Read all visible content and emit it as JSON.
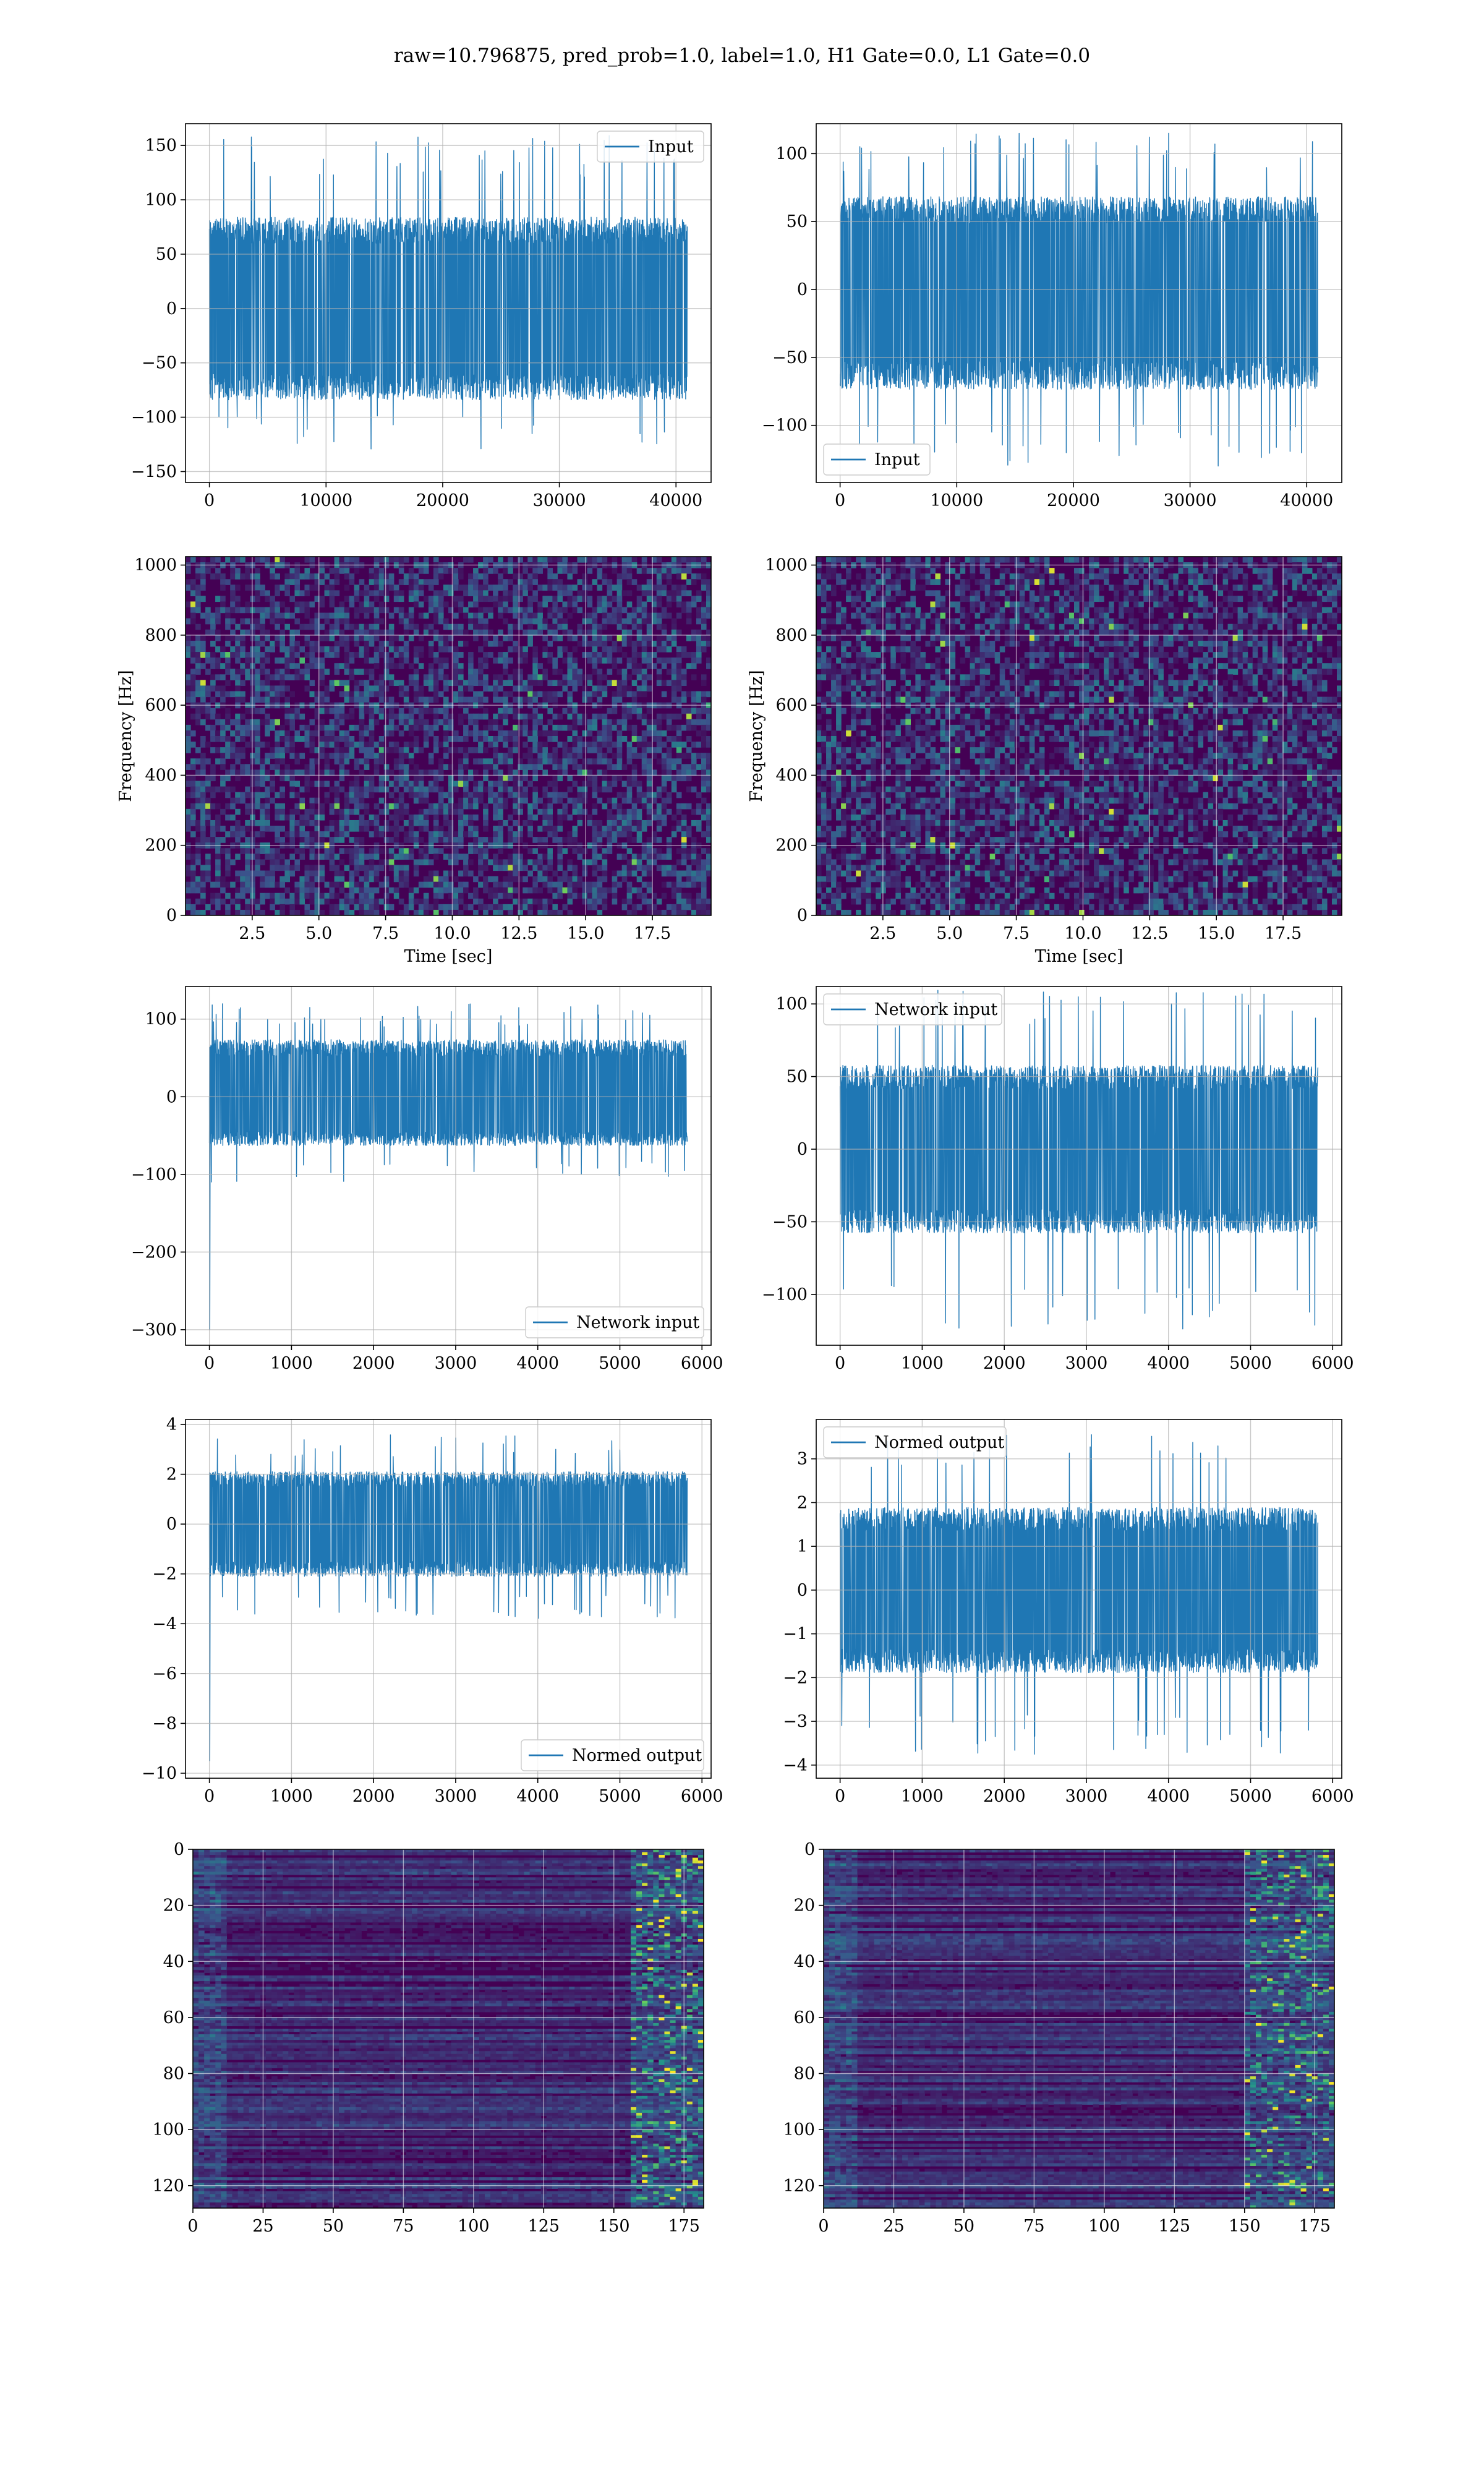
{
  "figure": {
    "title": "raw=10.796875, pred_prob=1.0, label=1.0, H1 Gate=0.0, L1 Gate=0.0",
    "colors": {
      "line": "#1f77b4",
      "grid": "#b0b0b0",
      "spine": "#000000",
      "viridis_low": "#440154"
    }
  },
  "chart_data": [
    {
      "id": "h1-input",
      "type": "line",
      "title": "",
      "xlabel": "",
      "ylabel": "",
      "xlim": [
        -2048,
        43008
      ],
      "ylim": [
        -160,
        170
      ],
      "xticks": [
        0,
        10000,
        20000,
        30000,
        40000
      ],
      "yticks": [
        -150,
        -100,
        -50,
        0,
        50,
        100,
        150
      ],
      "grid": true,
      "legend_loc": "upper right",
      "series": [
        {
          "name": "Input",
          "n_points": 40960,
          "x_range": [
            0,
            40960
          ],
          "envelope": [
            -130,
            160
          ],
          "core_band": [
            -80,
            80
          ]
        }
      ]
    },
    {
      "id": "l1-input",
      "type": "line",
      "title": "",
      "xlabel": "",
      "ylabel": "",
      "xlim": [
        -2048,
        43008
      ],
      "ylim": [
        -142,
        122
      ],
      "xticks": [
        0,
        10000,
        20000,
        30000,
        40000
      ],
      "yticks": [
        -100,
        -50,
        0,
        50,
        100
      ],
      "grid": true,
      "legend_loc": "lower left",
      "series": [
        {
          "name": "Input",
          "n_points": 40960,
          "x_range": [
            0,
            40960
          ],
          "envelope": [
            -130,
            115
          ],
          "core_band": [
            -70,
            65
          ]
        }
      ]
    },
    {
      "id": "h1-spectrogram",
      "type": "heatmap",
      "title": "",
      "xlabel": "Time [sec]",
      "ylabel": "Frequency [Hz]",
      "xlim": [
        0,
        19.7
      ],
      "ylim": [
        0,
        1024
      ],
      "xticks": [
        2.5,
        5.0,
        7.5,
        10.0,
        12.5,
        15.0,
        17.5
      ],
      "yticks": [
        0,
        200,
        400,
        600,
        800,
        1000
      ],
      "colormap": "viridis",
      "grid": true
    },
    {
      "id": "l1-spectrogram",
      "type": "heatmap",
      "title": "",
      "xlabel": "Time [sec]",
      "ylabel": "Frequency [Hz]",
      "xlim": [
        0,
        19.7
      ],
      "ylim": [
        0,
        1024
      ],
      "xticks": [
        2.5,
        5.0,
        7.5,
        10.0,
        12.5,
        15.0,
        17.5
      ],
      "yticks": [
        0,
        200,
        400,
        600,
        800,
        1000
      ],
      "colormap": "viridis",
      "grid": true
    },
    {
      "id": "h1-network-input",
      "type": "line",
      "title": "",
      "xlabel": "",
      "ylabel": "",
      "xlim": [
        -291,
        6111
      ],
      "ylim": [
        -320,
        142
      ],
      "xticks": [
        0,
        1000,
        2000,
        3000,
        4000,
        5000,
        6000
      ],
      "yticks": [
        -300,
        -200,
        -100,
        0,
        100
      ],
      "grid": true,
      "legend_loc": "lower right",
      "series": [
        {
          "name": "Network input",
          "n_points": 5820,
          "x_range": [
            0,
            5820
          ],
          "envelope": [
            -110,
            120
          ],
          "spike_at_start": -300,
          "core_band": [
            -60,
            70
          ]
        }
      ]
    },
    {
      "id": "l1-network-input",
      "type": "line",
      "title": "",
      "xlabel": "",
      "ylabel": "",
      "xlim": [
        -291,
        6111
      ],
      "ylim": [
        -135,
        112
      ],
      "xticks": [
        0,
        1000,
        2000,
        3000,
        4000,
        5000,
        6000
      ],
      "yticks": [
        -100,
        -50,
        0,
        50,
        100
      ],
      "grid": true,
      "legend_loc": "upper left",
      "series": [
        {
          "name": "Network input",
          "n_points": 5820,
          "x_range": [
            0,
            5820
          ],
          "envelope": [
            -125,
            110
          ],
          "core_band": [
            -55,
            55
          ]
        }
      ]
    },
    {
      "id": "h1-normed-output",
      "type": "line",
      "title": "",
      "xlabel": "",
      "ylabel": "",
      "xlim": [
        -291,
        6111
      ],
      "ylim": [
        -10.2,
        4.2
      ],
      "xticks": [
        0,
        1000,
        2000,
        3000,
        4000,
        5000,
        6000
      ],
      "yticks": [
        -10,
        -8,
        -6,
        -4,
        -2,
        0,
        2,
        4
      ],
      "grid": true,
      "legend_loc": "lower right",
      "series": [
        {
          "name": "Normed output",
          "n_points": 5820,
          "x_range": [
            0,
            5820
          ],
          "envelope": [
            -3.8,
            3.6
          ],
          "spike_at_start": -9.5,
          "core_band": [
            -2,
            2
          ]
        }
      ]
    },
    {
      "id": "l1-normed-output",
      "type": "line",
      "title": "",
      "xlabel": "",
      "ylabel": "",
      "xlim": [
        -291,
        6111
      ],
      "ylim": [
        -4.3,
        3.9
      ],
      "xticks": [
        0,
        1000,
        2000,
        3000,
        4000,
        5000,
        6000
      ],
      "yticks": [
        -4,
        -3,
        -2,
        -1,
        0,
        1,
        2,
        3
      ],
      "grid": true,
      "legend_loc": "upper left",
      "series": [
        {
          "name": "Normed output",
          "n_points": 5820,
          "x_range": [
            0,
            5820
          ],
          "envelope": [
            -3.8,
            3.6
          ],
          "core_band": [
            -1.8,
            1.8
          ]
        }
      ]
    },
    {
      "id": "h1-feature-map",
      "type": "heatmap",
      "title": "",
      "xlabel": "",
      "ylabel": "",
      "xlim": [
        0,
        182
      ],
      "ylim": [
        128,
        0
      ],
      "y_inverted": true,
      "xticks": [
        0,
        25,
        50,
        75,
        100,
        125,
        150,
        175
      ],
      "yticks": [
        0,
        20,
        40,
        60,
        80,
        100,
        120
      ],
      "colormap": "viridis",
      "grid": true,
      "bright_column_band": [
        155,
        180
      ]
    },
    {
      "id": "l1-feature-map",
      "type": "heatmap",
      "title": "",
      "xlabel": "",
      "ylabel": "",
      "xlim": [
        0,
        182
      ],
      "ylim": [
        128,
        0
      ],
      "y_inverted": true,
      "xticks": [
        0,
        25,
        50,
        75,
        100,
        125,
        150,
        175
      ],
      "yticks": [
        0,
        20,
        40,
        60,
        80,
        100,
        120
      ],
      "colormap": "viridis",
      "grid": true,
      "bright_column_band": [
        150,
        180
      ]
    }
  ]
}
